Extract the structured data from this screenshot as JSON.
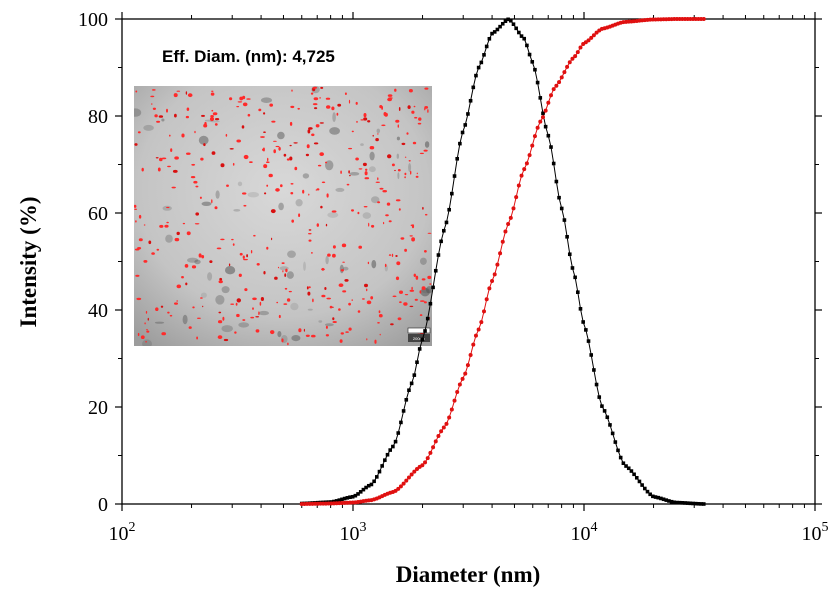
{
  "chart_data": {
    "type": "line",
    "xscale": "log",
    "xlim": [
      100,
      100000
    ],
    "ylim": [
      0,
      100
    ],
    "xlabel": "Diameter (nm)",
    "ylabel": "Intensity (%)",
    "x_ticks": [
      {
        "value": 100,
        "base": "10",
        "exp": "2"
      },
      {
        "value": 1000,
        "base": "10",
        "exp": "3"
      },
      {
        "value": 10000,
        "base": "10",
        "exp": "4"
      },
      {
        "value": 100000,
        "base": "10",
        "exp": "5"
      }
    ],
    "y_ticks": [
      0,
      20,
      40,
      60,
      80,
      100
    ],
    "annotation": "Eff. Diam. (nm): 4,725",
    "grid": false,
    "series": [
      {
        "kind": "distribution",
        "marker": "square",
        "color": "#000000",
        "peak_x": 4725,
        "peak_y": 100,
        "x": [
          600,
          800,
          1000,
          1200,
          1500,
          1800,
          2000,
          2500,
          3000,
          3500,
          4000,
          4725,
          5500,
          6000,
          7000,
          8000,
          9000,
          10000,
          12000,
          15000,
          20000,
          25000,
          33000
        ],
        "y": [
          0.1,
          0.4,
          1.5,
          4,
          12,
          25,
          34,
          57,
          77,
          90,
          97,
          100,
          96,
          91,
          76,
          61,
          48,
          37,
          20,
          8,
          1.5,
          0.3,
          0
        ]
      },
      {
        "kind": "cumulative",
        "marker": "circle",
        "color": "#e01010",
        "x": [
          600,
          800,
          1000,
          1200,
          1500,
          2000,
          2500,
          3000,
          3500,
          4000,
          4725,
          5500,
          6500,
          7500,
          9000,
          10000,
          12000,
          15000,
          20000,
          25000,
          33000
        ],
        "y": [
          0,
          0.1,
          0.3,
          0.8,
          2.5,
          8,
          16,
          26,
          36,
          46,
          58,
          69,
          79,
          86,
          92,
          95,
          98,
          99.4,
          99.9,
          100,
          100
        ]
      }
    ]
  },
  "inset": {
    "kind": "micrograph",
    "scale_bar": "200nm"
  }
}
